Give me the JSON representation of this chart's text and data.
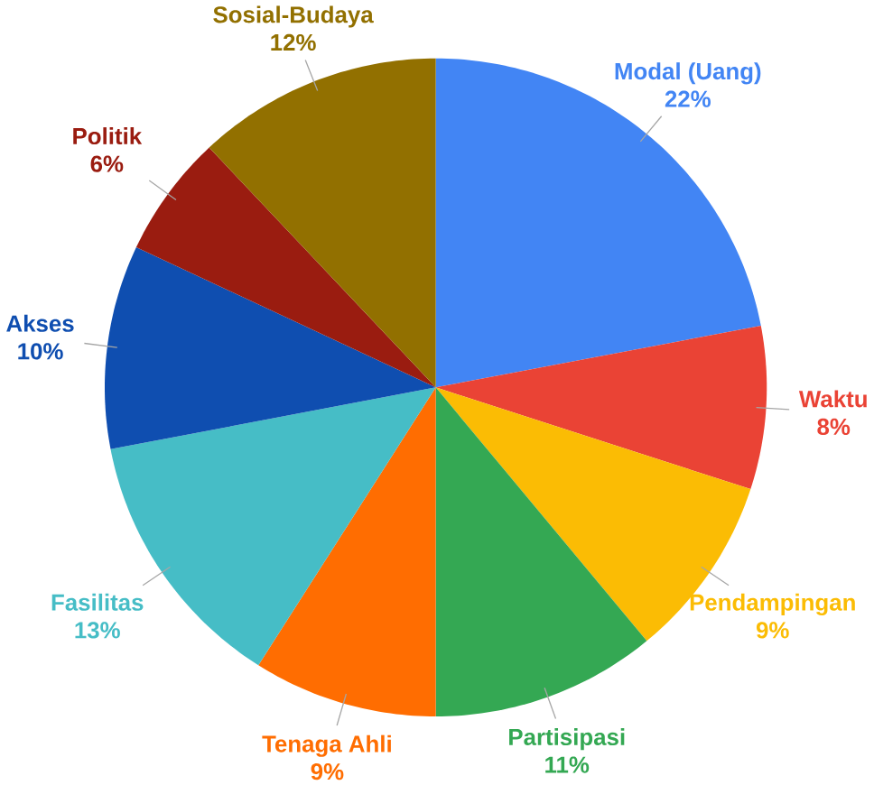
{
  "chart_data": {
    "type": "pie",
    "categories": [
      "Modal (Uang)",
      "Waktu",
      "Pendampingan",
      "Partisipasi",
      "Tenaga Ahli",
      "Fasilitas",
      "Akses",
      "Politik",
      "Sosial-Budaya"
    ],
    "values": [
      22,
      8,
      9,
      11,
      9,
      13,
      10,
      6,
      12
    ],
    "colors": [
      "#4285f4",
      "#ea4335",
      "#fbbc04",
      "#34a853",
      "#ff6d01",
      "#46bdc6",
      "#0f4eb0",
      "#9a1c10",
      "#927000"
    ],
    "value_labels": [
      "22%",
      "8%",
      "9%",
      "11%",
      "9%",
      "13%",
      "10%",
      "6%",
      "12%"
    ]
  }
}
